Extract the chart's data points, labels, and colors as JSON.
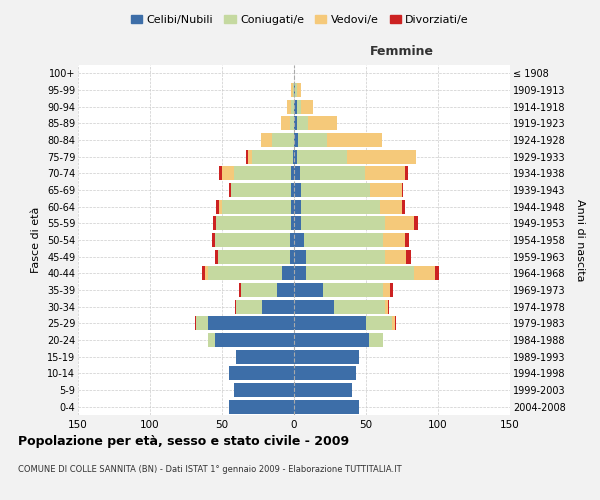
{
  "age_groups": [
    "0-4",
    "5-9",
    "10-14",
    "15-19",
    "20-24",
    "25-29",
    "30-34",
    "35-39",
    "40-44",
    "45-49",
    "50-54",
    "55-59",
    "60-64",
    "65-69",
    "70-74",
    "75-79",
    "80-84",
    "85-89",
    "90-94",
    "95-99",
    "100+"
  ],
  "birth_years": [
    "2004-2008",
    "1999-2003",
    "1994-1998",
    "1989-1993",
    "1984-1988",
    "1979-1983",
    "1974-1978",
    "1969-1973",
    "1964-1968",
    "1959-1963",
    "1954-1958",
    "1949-1953",
    "1944-1948",
    "1939-1943",
    "1934-1938",
    "1929-1933",
    "1924-1928",
    "1919-1923",
    "1914-1918",
    "1909-1913",
    "≤ 1908"
  ],
  "male": {
    "celibe": [
      45,
      42,
      45,
      40,
      55,
      60,
      22,
      12,
      8,
      3,
      3,
      2,
      2,
      2,
      2,
      1,
      0,
      0,
      0,
      0,
      0
    ],
    "coniugato": [
      0,
      0,
      0,
      0,
      5,
      8,
      18,
      25,
      52,
      50,
      52,
      52,
      48,
      42,
      40,
      28,
      15,
      3,
      2,
      1,
      0
    ],
    "vedovo": [
      0,
      0,
      0,
      0,
      0,
      0,
      0,
      0,
      2,
      0,
      0,
      0,
      2,
      0,
      8,
      3,
      8,
      6,
      3,
      1,
      0
    ],
    "divorziato": [
      0,
      0,
      0,
      0,
      0,
      1,
      1,
      1,
      2,
      2,
      2,
      2,
      2,
      1,
      2,
      1,
      0,
      0,
      0,
      0,
      0
    ]
  },
  "female": {
    "nubile": [
      45,
      40,
      43,
      45,
      52,
      50,
      28,
      20,
      8,
      8,
      7,
      5,
      5,
      5,
      4,
      2,
      3,
      2,
      2,
      1,
      0
    ],
    "coniugata": [
      0,
      0,
      0,
      0,
      10,
      18,
      35,
      42,
      75,
      55,
      55,
      58,
      55,
      48,
      45,
      35,
      20,
      8,
      3,
      1,
      0
    ],
    "vedova": [
      0,
      0,
      0,
      0,
      0,
      2,
      2,
      5,
      15,
      15,
      15,
      20,
      15,
      22,
      28,
      48,
      38,
      20,
      8,
      3,
      0
    ],
    "divorziata": [
      0,
      0,
      0,
      0,
      0,
      1,
      1,
      2,
      3,
      3,
      3,
      3,
      2,
      1,
      2,
      0,
      0,
      0,
      0,
      0,
      0
    ]
  },
  "colors": {
    "celibe_nubile": "#3d6ea8",
    "coniugato_a": "#c5d9a0",
    "vedovo_a": "#f5c97a",
    "divorziato_a": "#cc2222"
  },
  "title": "Popolazione per età, sesso e stato civile - 2009",
  "subtitle": "COMUNE DI COLLE SANNITA (BN) - Dati ISTAT 1° gennaio 2009 - Elaborazione TUTTITALIA.IT",
  "xlabel_right": "Femmine",
  "ylabel_left": "Fasce di età",
  "ylabel_right": "Anni di nascita",
  "xlim": 150,
  "legend_labels": [
    "Celibi/Nubili",
    "Coniugati/e",
    "Vedovi/e",
    "Divorziati/e"
  ],
  "background_color": "#f2f2f2",
  "plot_bg_color": "#ffffff"
}
